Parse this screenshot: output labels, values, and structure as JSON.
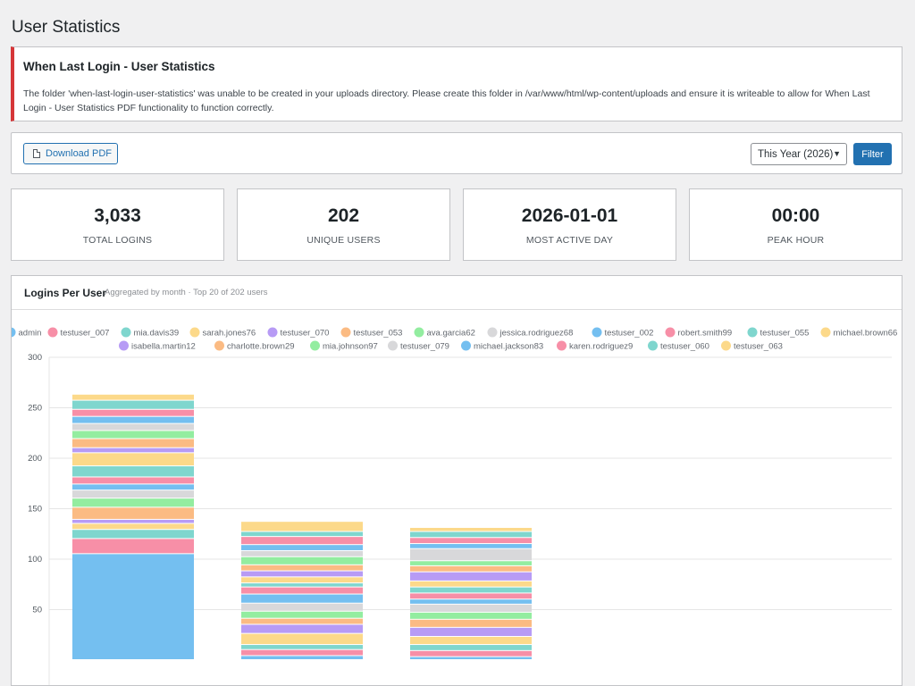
{
  "page": {
    "title": "User Statistics"
  },
  "notice": {
    "title": "When Last Login - User Statistics",
    "text": "The folder 'when-last-login-user-statistics' was unable to be created in your uploads directory. Please create this folder in /var/www/html/wp-content/uploads and ensure it is writeable to allow for When Last Login - User Statistics PDF functionality to function correctly."
  },
  "toolbar": {
    "download_label": "Download PDF",
    "download_icon": "document-icon",
    "period_selected": "This Year (2026)",
    "filter_label": "Filter"
  },
  "stats": [
    {
      "value": "3,033",
      "label": "TOTAL LOGINS"
    },
    {
      "value": "202",
      "label": "UNIQUE USERS"
    },
    {
      "value": "2026-01-01",
      "label": "MOST ACTIVE DAY"
    },
    {
      "value": "00:00",
      "label": "PEAK HOUR"
    }
  ],
  "chart_card": {
    "title": "Logins Per User",
    "subtitle": "Aggregated by month · Top 20 of 202 users"
  },
  "chart_data": {
    "type": "bar",
    "stacked": true,
    "ylim": [
      0,
      300
    ],
    "yticks": [
      50,
      100,
      150,
      200,
      250,
      300
    ],
    "grid": true,
    "legend_position": "top",
    "series": [
      {
        "name": "admin",
        "color": "#74bff0",
        "values": [
          105,
          4,
          3
        ]
      },
      {
        "name": "testuser_007",
        "color": "#f78fa7",
        "values": [
          15,
          6,
          6
        ]
      },
      {
        "name": "mia.davis39",
        "color": "#7fd6ce",
        "values": [
          9,
          5,
          6
        ]
      },
      {
        "name": "sarah.jones76",
        "color": "#fcd98a",
        "values": [
          6,
          11,
          8
        ]
      },
      {
        "name": "testuser_070",
        "color": "#b79bf5",
        "values": [
          4,
          9,
          9
        ]
      },
      {
        "name": "testuser_053",
        "color": "#fbbb83",
        "values": [
          12,
          6,
          8
        ]
      },
      {
        "name": "ava.garcia62",
        "color": "#93eda0",
        "values": [
          9,
          7,
          7
        ]
      },
      {
        "name": "jessica.rodriguez68",
        "color": "#d8d8da",
        "values": [
          8,
          8,
          8
        ]
      },
      {
        "name": "testuser_002",
        "color": "#74bff0",
        "values": [
          6,
          9,
          5
        ]
      },
      {
        "name": "robert.smith99",
        "color": "#f78fa7",
        "values": [
          7,
          7,
          6
        ]
      },
      {
        "name": "testuser_055",
        "color": "#7fd6ce",
        "values": [
          11,
          4,
          6
        ]
      },
      {
        "name": "michael.brown66",
        "color": "#fcd98a",
        "values": [
          13,
          6,
          6
        ]
      },
      {
        "name": "isabella.martin12",
        "color": "#b79bf5",
        "values": [
          5,
          6,
          9
        ]
      },
      {
        "name": "charlotte.brown29",
        "color": "#fbbb83",
        "values": [
          9,
          6,
          6
        ]
      },
      {
        "name": "mia.johnson97",
        "color": "#93eda0",
        "values": [
          8,
          8,
          5
        ]
      },
      {
        "name": "testuser_079",
        "color": "#d8d8da",
        "values": [
          7,
          6,
          12
        ]
      },
      {
        "name": "michael.jackson83",
        "color": "#74bff0",
        "values": [
          7,
          6,
          5
        ]
      },
      {
        "name": "karen.rodriguez9",
        "color": "#f78fa7",
        "values": [
          7,
          8,
          6
        ]
      },
      {
        "name": "testuser_060",
        "color": "#7fd6ce",
        "values": [
          9,
          5,
          6
        ]
      },
      {
        "name": "testuser_063",
        "color": "#fcd98a",
        "values": [
          6,
          10,
          4
        ]
      }
    ]
  }
}
